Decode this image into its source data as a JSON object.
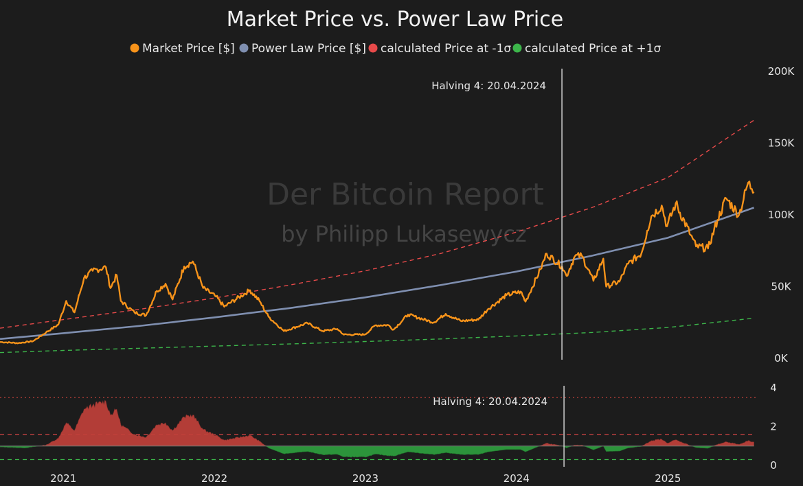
{
  "chart_data": {
    "type": "line",
    "title": "Market Price vs. Power Law Price",
    "watermark": {
      "line1": "Der Bitcoin Report",
      "line2": "by Philipp Lukasewycz"
    },
    "colors": {
      "market": "#f7931a",
      "powerlaw": "#7f8fb0",
      "minus_sigma": "#e84a4a",
      "plus_sigma": "#3cb54a",
      "ratio_above": "#c0403a",
      "ratio_below": "#2e9e3e",
      "background": "#1c1c1c",
      "halving_line": "#dddddd"
    },
    "legend": [
      {
        "key": "market",
        "label": "Market Price [$]",
        "color": "#f7931a"
      },
      {
        "key": "powerlaw",
        "label": "Power Law Price [$]",
        "color": "#7f8fb0"
      },
      {
        "key": "minus_sigma",
        "label": "calculated Price at -1σ",
        "color": "#e84a4a"
      },
      {
        "key": "plus_sigma",
        "label": "calculated Price at +1σ",
        "color": "#3cb54a"
      }
    ],
    "x_tick_labels": [
      "2021",
      "2022",
      "2023",
      "2024",
      "2025"
    ],
    "x_range": [
      "2020-08-01",
      "2025-08-01"
    ],
    "y_axis_top": {
      "ylim": [
        0,
        200000
      ],
      "tick_values": [
        0,
        50000,
        100000,
        150000,
        200000
      ],
      "tick_labels": [
        "0K",
        "50K",
        "100K",
        "150K",
        "200K"
      ],
      "position": "right"
    },
    "y_axis_bottom": {
      "ylim": [
        0,
        4
      ],
      "tick_values": [
        0,
        2,
        4
      ],
      "tick_labels": [
        "0",
        "2",
        "4"
      ],
      "position": "right"
    },
    "halving": {
      "date": "2024-04-20",
      "label": "Halving 4: 20.04.2024"
    },
    "market_price": {
      "name": "Market Price [$]",
      "points": [
        [
          "2020-08-01",
          11400
        ],
        [
          "2020-09-15",
          10600
        ],
        [
          "2020-10-20",
          12000
        ],
        [
          "2020-11-20",
          18000
        ],
        [
          "2020-12-20",
          23500
        ],
        [
          "2021-01-08",
          40000
        ],
        [
          "2021-01-28",
          32000
        ],
        [
          "2021-02-20",
          56000
        ],
        [
          "2021-03-13",
          61000
        ],
        [
          "2021-04-14",
          63500
        ],
        [
          "2021-04-25",
          49000
        ],
        [
          "2021-05-10",
          58000
        ],
        [
          "2021-05-20",
          40000
        ],
        [
          "2021-06-22",
          32000
        ],
        [
          "2021-07-20",
          30000
        ],
        [
          "2021-08-15",
          47000
        ],
        [
          "2021-09-05",
          52000
        ],
        [
          "2021-09-22",
          41000
        ],
        [
          "2021-10-20",
          64000
        ],
        [
          "2021-11-10",
          67500
        ],
        [
          "2021-12-05",
          49000
        ],
        [
          "2022-01-05",
          43000
        ],
        [
          "2022-01-25",
          36000
        ],
        [
          "2022-03-28",
          47500
        ],
        [
          "2022-04-20",
          40000
        ],
        [
          "2022-05-12",
          29000
        ],
        [
          "2022-06-18",
          19000
        ],
        [
          "2022-08-14",
          24500
        ],
        [
          "2022-09-20",
          19000
        ],
        [
          "2022-10-25",
          20500
        ],
        [
          "2022-11-10",
          16500
        ],
        [
          "2022-12-31",
          16600
        ],
        [
          "2023-01-25",
          23000
        ],
        [
          "2023-02-25",
          23200
        ],
        [
          "2023-03-10",
          20000
        ],
        [
          "2023-04-14",
          30500
        ],
        [
          "2023-06-15",
          25000
        ],
        [
          "2023-07-14",
          31000
        ],
        [
          "2023-08-20",
          26000
        ],
        [
          "2023-10-01",
          27000
        ],
        [
          "2023-10-25",
          34500
        ],
        [
          "2023-12-08",
          44000
        ],
        [
          "2024-01-11",
          46500
        ],
        [
          "2024-01-23",
          39500
        ],
        [
          "2024-02-28",
          62000
        ],
        [
          "2024-03-14",
          73000
        ],
        [
          "2024-04-20",
          64000
        ],
        [
          "2024-05-01",
          57500
        ],
        [
          "2024-05-21",
          71000
        ],
        [
          "2024-06-07",
          71500
        ],
        [
          "2024-07-05",
          54000
        ],
        [
          "2024-07-29",
          69500
        ],
        [
          "2024-08-05",
          50000
        ],
        [
          "2024-09-06",
          53500
        ],
        [
          "2024-09-27",
          66000
        ],
        [
          "2024-10-29",
          73000
        ],
        [
          "2024-11-12",
          89000
        ],
        [
          "2024-11-22",
          99000
        ],
        [
          "2024-12-17",
          106500
        ],
        [
          "2024-12-30",
          92000
        ],
        [
          "2025-01-20",
          108000
        ],
        [
          "2025-02-25",
          86000
        ],
        [
          "2025-03-10",
          78000
        ],
        [
          "2025-04-08",
          76500
        ],
        [
          "2025-05-01",
          96500
        ],
        [
          "2025-05-22",
          111500
        ],
        [
          "2025-06-22",
          100000
        ],
        [
          "2025-07-14",
          122500
        ],
        [
          "2025-07-23",
          118000
        ],
        [
          "2025-07-28",
          116000
        ]
      ]
    },
    "power_law_price": {
      "name": "Power Law Price [$]",
      "points": [
        [
          "2020-08-01",
          13500
        ],
        [
          "2021-01-01",
          17500
        ],
        [
          "2021-07-01",
          22500
        ],
        [
          "2022-01-01",
          28500
        ],
        [
          "2022-07-01",
          35000
        ],
        [
          "2023-01-01",
          42500
        ],
        [
          "2023-07-01",
          51000
        ],
        [
          "2024-01-01",
          60500
        ],
        [
          "2024-07-01",
          71500
        ],
        [
          "2025-01-01",
          84000
        ],
        [
          "2025-07-28",
          105000
        ]
      ]
    },
    "minus_sigma_price": {
      "name": "calculated Price at -1σ",
      "points": [
        [
          "2020-08-01",
          21000
        ],
        [
          "2021-01-01",
          27000
        ],
        [
          "2021-07-01",
          34000
        ],
        [
          "2022-01-01",
          42000
        ],
        [
          "2022-07-01",
          51000
        ],
        [
          "2023-01-01",
          61000
        ],
        [
          "2023-07-01",
          73000
        ],
        [
          "2024-01-01",
          88000
        ],
        [
          "2024-07-01",
          105000
        ],
        [
          "2025-01-01",
          126000
        ],
        [
          "2025-07-28",
          166000
        ]
      ]
    },
    "plus_sigma_price": {
      "name": "calculated Price at +1σ",
      "points": [
        [
          "2020-08-01",
          4000
        ],
        [
          "2021-01-01",
          5500
        ],
        [
          "2021-07-01",
          7000
        ],
        [
          "2022-01-01",
          8500
        ],
        [
          "2022-07-01",
          10000
        ],
        [
          "2023-01-01",
          11700
        ],
        [
          "2023-07-01",
          13500
        ],
        [
          "2024-01-01",
          15600
        ],
        [
          "2024-07-01",
          18000
        ],
        [
          "2025-01-01",
          21500
        ],
        [
          "2025-07-28",
          28000
        ]
      ]
    },
    "ratio": {
      "baseline": 1.0,
      "reference_lines": [
        {
          "value": 3.5,
          "color": "#c0403a",
          "style": "dotted"
        },
        {
          "value": 1.6,
          "color": "#e84a4a",
          "style": "dashed"
        },
        {
          "value": 0.3,
          "color": "#3cb54a",
          "style": "dashed"
        }
      ],
      "points": [
        [
          "2020-08-01",
          0.95
        ],
        [
          "2020-10-01",
          0.9
        ],
        [
          "2020-11-20",
          1.05
        ],
        [
          "2020-12-20",
          1.4
        ],
        [
          "2021-01-08",
          2.2
        ],
        [
          "2021-01-28",
          1.8
        ],
        [
          "2021-02-20",
          2.9
        ],
        [
          "2021-03-13",
          3.1
        ],
        [
          "2021-04-14",
          3.3
        ],
        [
          "2021-04-25",
          2.6
        ],
        [
          "2021-05-10",
          2.9
        ],
        [
          "2021-05-20",
          2.1
        ],
        [
          "2021-06-22",
          1.6
        ],
        [
          "2021-07-20",
          1.45
        ],
        [
          "2021-08-15",
          2.1
        ],
        [
          "2021-09-05",
          2.2
        ],
        [
          "2021-09-22",
          1.8
        ],
        [
          "2021-10-20",
          2.5
        ],
        [
          "2021-11-10",
          2.6
        ],
        [
          "2021-12-05",
          1.85
        ],
        [
          "2022-01-05",
          1.55
        ],
        [
          "2022-01-25",
          1.3
        ],
        [
          "2022-03-28",
          1.55
        ],
        [
          "2022-04-20",
          1.25
        ],
        [
          "2022-05-12",
          0.9
        ],
        [
          "2022-06-18",
          0.6
        ],
        [
          "2022-08-14",
          0.72
        ],
        [
          "2022-09-20",
          0.55
        ],
        [
          "2022-10-25",
          0.57
        ],
        [
          "2022-11-10",
          0.44
        ],
        [
          "2022-12-31",
          0.43
        ],
        [
          "2023-01-25",
          0.58
        ],
        [
          "2023-03-10",
          0.48
        ],
        [
          "2023-04-14",
          0.7
        ],
        [
          "2023-06-15",
          0.56
        ],
        [
          "2023-07-14",
          0.66
        ],
        [
          "2023-08-20",
          0.56
        ],
        [
          "2023-10-01",
          0.56
        ],
        [
          "2023-10-25",
          0.7
        ],
        [
          "2023-12-08",
          0.82
        ],
        [
          "2024-01-11",
          0.82
        ],
        [
          "2024-01-23",
          0.7
        ],
        [
          "2024-02-28",
          1.02
        ],
        [
          "2024-03-14",
          1.15
        ],
        [
          "2024-04-20",
          1.0
        ],
        [
          "2024-05-01",
          0.9
        ],
        [
          "2024-05-21",
          1.05
        ],
        [
          "2024-06-07",
          1.05
        ],
        [
          "2024-07-05",
          0.8
        ],
        [
          "2024-07-29",
          1.0
        ],
        [
          "2024-08-05",
          0.72
        ],
        [
          "2024-09-06",
          0.74
        ],
        [
          "2024-09-27",
          0.9
        ],
        [
          "2024-10-29",
          0.98
        ],
        [
          "2024-11-12",
          1.15
        ],
        [
          "2024-11-22",
          1.28
        ],
        [
          "2024-12-17",
          1.35
        ],
        [
          "2024-12-30",
          1.15
        ],
        [
          "2025-01-20",
          1.32
        ],
        [
          "2025-02-25",
          1.02
        ],
        [
          "2025-03-10",
          0.92
        ],
        [
          "2025-04-08",
          0.88
        ],
        [
          "2025-05-01",
          1.08
        ],
        [
          "2025-05-22",
          1.22
        ],
        [
          "2025-06-22",
          1.08
        ],
        [
          "2025-07-14",
          1.28
        ],
        [
          "2025-07-28",
          1.2
        ]
      ]
    }
  }
}
